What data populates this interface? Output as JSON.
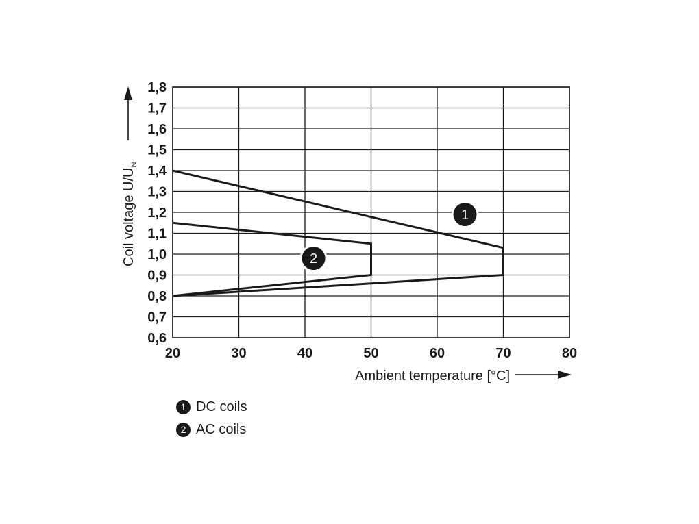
{
  "chart_data": {
    "type": "line",
    "xlabel": "Ambient temperature [°C]",
    "ylabel_main": "Coil voltage U/U",
    "ylabel_sub": "N",
    "xlim": [
      20,
      80
    ],
    "ylim": [
      0.6,
      1.8
    ],
    "x_ticks": [
      "20",
      "30",
      "40",
      "50",
      "60",
      "70",
      "80"
    ],
    "y_ticks": [
      "0,6",
      "0,7",
      "0,8",
      "0,9",
      "1,0",
      "1,1",
      "1,2",
      "1,3",
      "1,4",
      "1,5",
      "1,6",
      "1,7",
      "1,8"
    ],
    "grid": true,
    "series": [
      {
        "marker": "1",
        "name": "DC coils",
        "points": [
          [
            20,
            1.4
          ],
          [
            70,
            1.03
          ],
          [
            70,
            0.9
          ],
          [
            20,
            0.8
          ]
        ],
        "marker_pos": [
          64.2,
          1.19
        ]
      },
      {
        "marker": "2",
        "name": "AC coils",
        "points": [
          [
            20,
            1.15
          ],
          [
            50,
            1.05
          ],
          [
            50,
            0.9
          ],
          [
            20,
            0.8
          ]
        ],
        "marker_pos": [
          41.3,
          0.98
        ]
      }
    ]
  },
  "legend": [
    {
      "num": "1",
      "label": "DC coils"
    },
    {
      "num": "2",
      "label": "AC coils"
    }
  ]
}
